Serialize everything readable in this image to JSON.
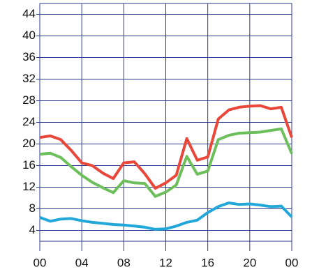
{
  "chart_data": {
    "type": "line",
    "x": [
      0,
      1,
      2,
      3,
      4,
      5,
      6,
      7,
      8,
      9,
      10,
      11,
      12,
      13,
      14,
      15,
      16,
      17,
      18,
      19,
      20,
      21,
      22,
      23,
      24
    ],
    "series": [
      {
        "color": "#e8473a",
        "values": [
          21.2,
          21.5,
          20.8,
          18.8,
          16.5,
          16,
          14.6,
          13.6,
          16.5,
          16.7,
          14.5,
          11.8,
          12.8,
          14.2,
          21,
          17,
          17.6,
          24.6,
          26.3,
          26.8,
          27,
          27.1,
          26.5,
          26.8,
          21.2
        ]
      },
      {
        "color": "#6cbf5a",
        "values": [
          18.1,
          18.3,
          17.5,
          15.8,
          14.2,
          12.9,
          11.9,
          11,
          13.2,
          12.8,
          12.7,
          10.3,
          11.1,
          12.4,
          17.7,
          14.4,
          15,
          20.8,
          21.6,
          22,
          22.1,
          22.2,
          22.5,
          22.8,
          18.2
        ]
      },
      {
        "color": "#22a7d9",
        "values": [
          6.4,
          5.7,
          6.1,
          6.2,
          5.8,
          5.5,
          5.3,
          5.1,
          5,
          4.8,
          4.6,
          4.2,
          4.3,
          4.8,
          5.5,
          5.9,
          7.3,
          8.4,
          9.1,
          8.8,
          8.9,
          8.7,
          8.4,
          8.5,
          6.5
        ]
      }
    ],
    "xlim": [
      0,
      24
    ],
    "xticks": [
      {
        "value": 0,
        "label": "00"
      },
      {
        "value": 4,
        "label": "04"
      },
      {
        "value": 8,
        "label": "08"
      },
      12,
      16,
      20,
      {
        "value": 24,
        "label": "00"
      }
    ],
    "ylim": [
      2,
      46
    ],
    "yticks": [
      4,
      8,
      12,
      16,
      20,
      24,
      28,
      32,
      36,
      40,
      44
    ],
    "grid": true
  }
}
